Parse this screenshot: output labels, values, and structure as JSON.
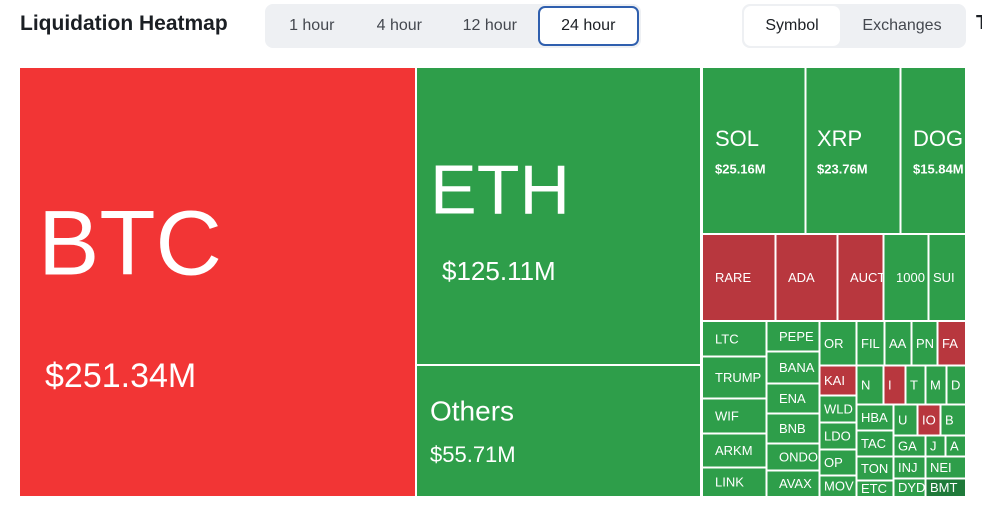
{
  "header": {
    "title": "Liquidation Heatmap",
    "periods": [
      "1 hour",
      "4 hour",
      "12 hour",
      "24 hour"
    ],
    "views": [
      "Symbol",
      "Exchanges"
    ],
    "cut_off": "T"
  },
  "tiles": [
    {
      "label": "BTC",
      "value": "$251.34M"
    },
    {
      "label": "ETH",
      "value": "$125.11M"
    },
    {
      "label": "Others",
      "value": "$55.71M"
    },
    {
      "label": "SOL",
      "value": "$25.16M"
    },
    {
      "label": "XRP",
      "value": "$23.76M"
    },
    {
      "label": "DOG",
      "value": "$15.84M"
    },
    {
      "label": "RARE"
    },
    {
      "label": "ADA"
    },
    {
      "label": "AUCT"
    },
    {
      "label": "1000"
    },
    {
      "label": "SUI"
    },
    {
      "label": "LTC"
    },
    {
      "label": "TRUMP"
    },
    {
      "label": "WIF"
    },
    {
      "label": "ARKM"
    },
    {
      "label": "LINK"
    },
    {
      "label": "PEPE"
    },
    {
      "label": "BANA"
    },
    {
      "label": "ENA"
    },
    {
      "label": "BNB"
    },
    {
      "label": "ONDO"
    },
    {
      "label": "AVAX"
    },
    {
      "label": "OR"
    },
    {
      "label": "KAI"
    },
    {
      "label": "WLD"
    },
    {
      "label": "LDO"
    },
    {
      "label": "OP"
    },
    {
      "label": "MOV"
    },
    {
      "label": "FIL"
    },
    {
      "label": "N"
    },
    {
      "label": "AA"
    },
    {
      "label": "PN"
    },
    {
      "label": "FA"
    },
    {
      "label": "I"
    },
    {
      "label": "T"
    },
    {
      "label": "M"
    },
    {
      "label": "D"
    },
    {
      "label": "HBA"
    },
    {
      "label": "TAC"
    },
    {
      "label": "TON"
    },
    {
      "label": "ETC"
    },
    {
      "label": "U"
    },
    {
      "label": "IO"
    },
    {
      "label": "B"
    },
    {
      "label": "GA"
    },
    {
      "label": "J"
    },
    {
      "label": "A"
    },
    {
      "label": "INJ"
    },
    {
      "label": "NEI"
    },
    {
      "label": "DYD"
    },
    {
      "label": "BMT"
    }
  ]
}
